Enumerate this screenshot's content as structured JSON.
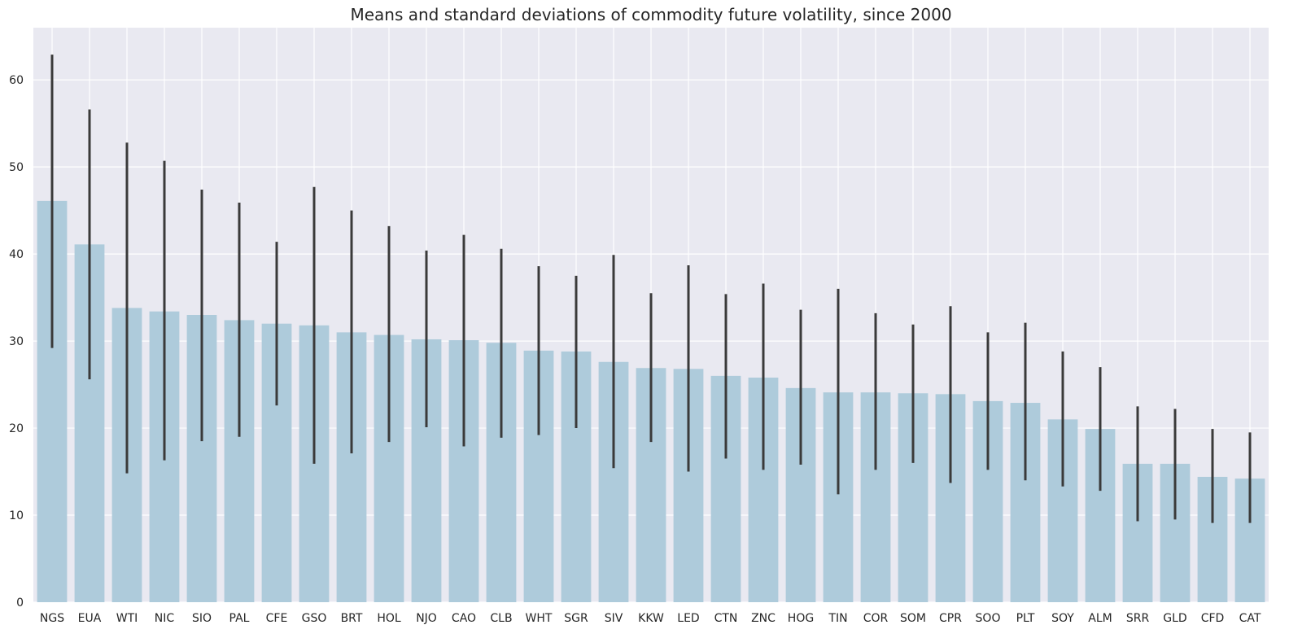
{
  "chart_data": {
    "type": "bar",
    "title": "Means and standard deviations of commodity future volatility, since 2000",
    "xlabel": "",
    "ylabel": "",
    "ylim": [
      0,
      66
    ],
    "yticks": [
      0,
      10,
      20,
      30,
      40,
      50,
      60
    ],
    "grid": true,
    "categories": [
      "NGS",
      "EUA",
      "WTI",
      "NIC",
      "SIO",
      "PAL",
      "CFE",
      "GSO",
      "BRT",
      "HOL",
      "NJO",
      "CAO",
      "CLB",
      "WHT",
      "SGR",
      "SIV",
      "KKW",
      "LED",
      "CTN",
      "ZNC",
      "HOG",
      "TIN",
      "COR",
      "SOM",
      "CPR",
      "SOO",
      "PLT",
      "SOY",
      "ALM",
      "SRR",
      "GLD",
      "CFD",
      "CAT"
    ],
    "values": [
      46.1,
      41.1,
      33.8,
      33.4,
      33.0,
      32.4,
      32.0,
      31.8,
      31.0,
      30.7,
      30.2,
      30.1,
      29.8,
      28.9,
      28.8,
      27.6,
      26.9,
      26.8,
      26.0,
      25.8,
      24.6,
      24.1,
      24.1,
      24.0,
      23.9,
      23.1,
      22.9,
      21.0,
      19.9,
      15.9,
      15.9,
      14.4,
      14.2
    ],
    "error_low": [
      29.2,
      25.6,
      14.8,
      16.3,
      18.5,
      19.0,
      22.6,
      15.9,
      17.1,
      18.4,
      20.1,
      17.9,
      18.9,
      19.2,
      20.0,
      15.4,
      18.4,
      15.0,
      16.5,
      15.2,
      15.8,
      12.4,
      15.2,
      16.0,
      13.7,
      15.2,
      14.0,
      13.3,
      12.8,
      9.3,
      9.5,
      9.1,
      9.1
    ],
    "error_high": [
      62.9,
      56.6,
      52.8,
      50.7,
      47.4,
      45.9,
      41.4,
      47.7,
      45.0,
      43.2,
      40.4,
      42.2,
      40.6,
      38.6,
      37.5,
      39.9,
      35.5,
      38.7,
      35.4,
      36.6,
      33.6,
      36.0,
      33.2,
      31.9,
      34.0,
      31.0,
      32.1,
      28.8,
      27.0,
      22.5,
      22.2,
      19.9,
      19.5
    ],
    "colors": {
      "bar": "#aecbdb",
      "error_bar": "#3a3a3a",
      "plot_bg": "#e9e9f1",
      "grid": "#ffffff",
      "text": "#262626"
    }
  }
}
